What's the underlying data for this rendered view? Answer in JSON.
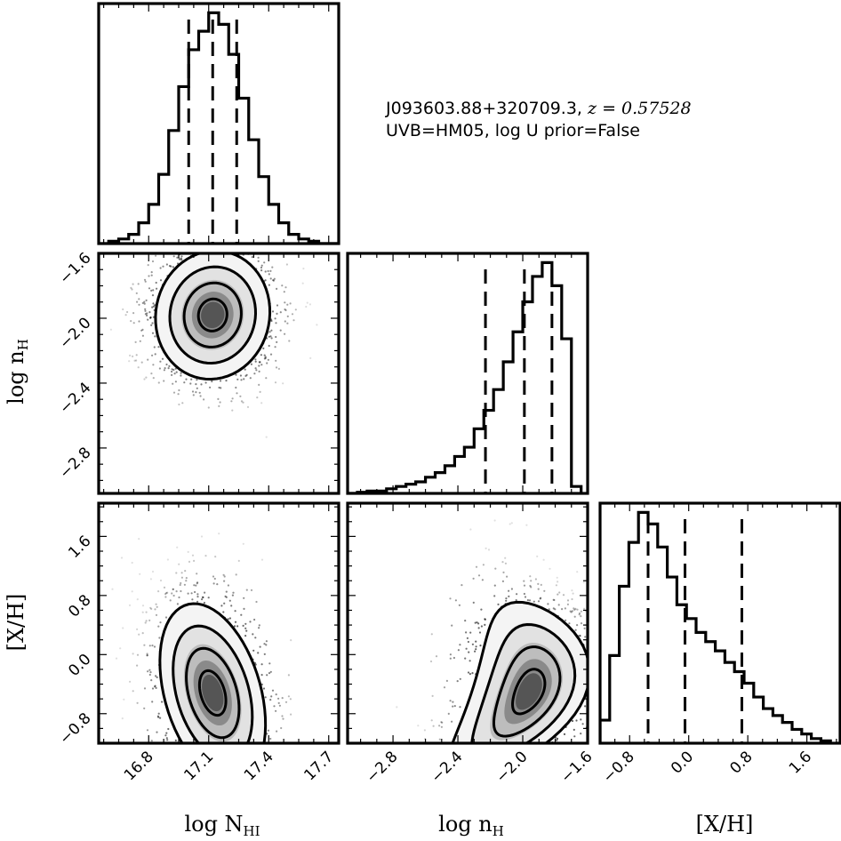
{
  "annotation": {
    "object": "J093603.88+320709.3,",
    "redshift": "z = 0.57528",
    "line2": "UVB=HM05, log U prior=False"
  },
  "chart_data": {
    "type": "corner",
    "parameters": [
      {
        "name": "log N_HI",
        "label": "log N",
        "label_sub": "HI",
        "range": [
          16.55,
          17.75
        ],
        "ticks": [
          16.8,
          17.1,
          17.4,
          17.7
        ],
        "tick_labels": [
          "16.8",
          "17.1",
          "17.4",
          "17.7"
        ],
        "quantiles": [
          17.0,
          17.12,
          17.24
        ]
      },
      {
        "name": "log n_H",
        "label": "log n",
        "label_sub": "H",
        "range": [
          -3.08,
          -1.6
        ],
        "ticks": [
          -2.8,
          -2.4,
          -2.0,
          -1.6
        ],
        "tick_labels": [
          "−2.8",
          "−2.4",
          "−2.0",
          "−1.6"
        ],
        "quantiles": [
          -2.23,
          -1.99,
          -1.82
        ]
      },
      {
        "name": "[X/H]",
        "label": "[X/H]",
        "label_sub": "",
        "range": [
          -1.2,
          2.05
        ],
        "ticks": [
          -0.8,
          0.0,
          0.8,
          1.6
        ],
        "tick_labels": [
          "−0.8",
          "0.0",
          "0.8",
          "1.6"
        ],
        "quantiles": [
          -0.55,
          -0.05,
          0.72
        ]
      }
    ],
    "histograms": [
      {
        "param": "log N_HI",
        "edges": [
          16.55,
          16.6,
          16.65,
          16.7,
          16.75,
          16.8,
          16.85,
          16.9,
          16.95,
          17.0,
          17.05,
          17.1,
          17.15,
          17.2,
          17.25,
          17.3,
          17.35,
          17.4,
          17.45,
          17.5,
          17.55,
          17.6,
          17.65,
          17.7,
          17.75
        ],
        "counts": [
          0,
          1,
          2,
          4,
          9,
          17,
          30,
          49,
          68,
          84,
          92,
          100,
          95,
          82,
          63,
          45,
          29,
          17,
          9,
          4,
          2,
          1,
          0,
          0
        ]
      },
      {
        "param": "log n_H",
        "edges": [
          -3.08,
          -3.02,
          -2.96,
          -2.9,
          -2.84,
          -2.78,
          -2.72,
          -2.66,
          -2.6,
          -2.54,
          -2.48,
          -2.42,
          -2.36,
          -2.3,
          -2.24,
          -2.18,
          -2.12,
          -2.06,
          -2,
          -1.94,
          -1.88,
          -1.82,
          -1.76,
          -1.7,
          -1.64
        ],
        "counts": [
          0,
          0.5,
          1,
          1,
          2,
          3,
          4,
          5,
          7,
          9,
          12,
          16,
          20,
          28,
          36,
          45,
          57,
          70,
          83,
          94,
          100,
          90,
          67,
          3
        ]
      },
      {
        "param": "[X/H]",
        "edges": [
          -1.2,
          -1.07,
          -0.94,
          -0.81,
          -0.68,
          -0.55,
          -0.42,
          -0.29,
          -0.16,
          -0.03,
          0.1,
          0.23,
          0.36,
          0.49,
          0.62,
          0.75,
          0.88,
          1.01,
          1.14,
          1.27,
          1.4,
          1.53,
          1.66,
          1.79,
          1.92
        ],
        "counts": [
          10,
          38,
          68,
          87,
          100,
          95,
          85,
          72,
          60,
          54,
          48,
          44,
          40,
          35,
          31,
          26,
          20,
          15,
          12,
          9,
          6,
          4,
          2,
          1
        ]
      }
    ],
    "joint": [
      {
        "x": "log N_HI",
        "y": "log n_H",
        "center": [
          17.12,
          -1.98
        ],
        "sigma": [
          0.13,
          0.18
        ],
        "rho": 0.05,
        "shape": "ellipse"
      },
      {
        "x": "log N_HI",
        "y": "[X/H]",
        "center": [
          17.12,
          -0.52
        ],
        "sigma": [
          0.12,
          0.55
        ],
        "rho": -0.35,
        "shape": "ellipse"
      },
      {
        "x": "log n_H",
        "y": "[X/H]",
        "center": [
          -1.96,
          -0.5
        ],
        "sigma": [
          0.18,
          0.55
        ],
        "rho": 0.45,
        "shape": "crescent"
      }
    ],
    "contour_levels": [
      0.5,
      1.0,
      1.5,
      2.0
    ],
    "colors": {
      "ink": "#000000",
      "background": "#ffffff"
    }
  }
}
